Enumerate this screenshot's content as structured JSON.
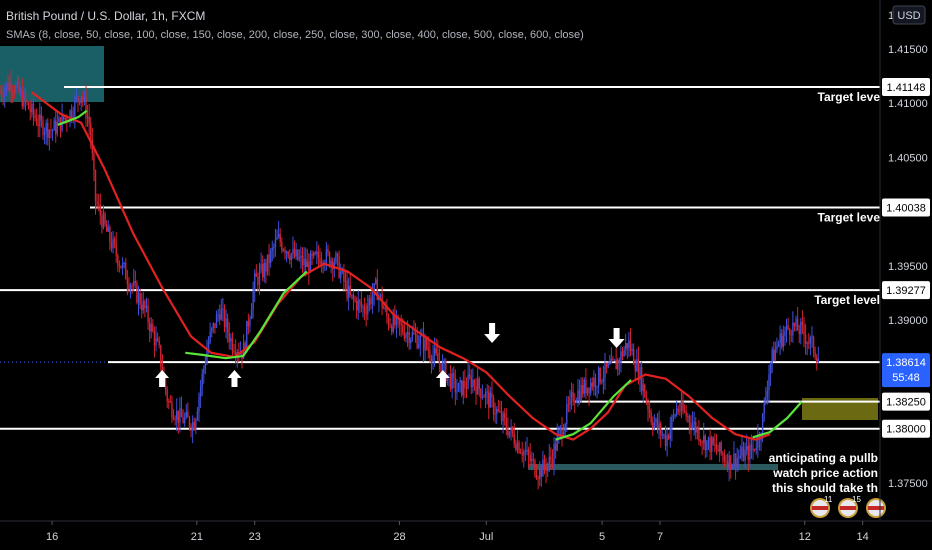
{
  "header": {
    "title": "British Pound / U.S. Dollar, 1h, FXCM",
    "indicator": "SMAs (8, close, 50, close, 100, close, 150, close, 200, close, 250, close, 300, close, 400, close, 500, close, 600, close)"
  },
  "price_scale": {
    "currency_badge": "USD",
    "top_label": "1"
  },
  "colors": {
    "background": "#000000",
    "up_candle": "#3f4fd8",
    "down_candle": "#d2232f",
    "sma_red": "#e22121",
    "sma_green": "#59e43a",
    "levels": "#ffffff",
    "current_price_badge": "#2962ff",
    "teal_zone": "#1a5f66",
    "olive_zone": "#6b6a12",
    "support_band": "#2a5a5e"
  },
  "chart_data": {
    "type": "candlestick",
    "title": "British Pound / U.S. Dollar, 1h, FXCM",
    "subtitle": "SMAs (8, close, 50, close, 100, close, 150, close, 200, close, 250, close, 300, close, 400, close, 500, close, 600, close)",
    "ylim": [
      1.3715,
      1.4195
    ],
    "y_ticks": [
      "1.41500",
      "1.41000",
      "1.40500",
      "1.39500",
      "1.39000",
      "1.38250",
      "1.38000",
      "1.37500"
    ],
    "x_ticks": [
      {
        "label": "16",
        "day": 16
      },
      {
        "label": "21",
        "day": 21
      },
      {
        "label": "23",
        "day": 23
      },
      {
        "label": "28",
        "day": 28
      },
      {
        "label": "Jul",
        "day": 31
      },
      {
        "label": "5",
        "day": 35
      },
      {
        "label": "7",
        "day": 37
      },
      {
        "label": "12",
        "day": 42
      },
      {
        "label": "14",
        "day": 44
      }
    ],
    "x_range_days": [
      14.2,
      44.6
    ],
    "price_path": [
      [
        14.2,
        1.411
      ],
      [
        14.6,
        1.412
      ],
      [
        15.2,
        1.4095
      ],
      [
        15.6,
        1.408
      ],
      [
        16.0,
        1.4075
      ],
      [
        16.6,
        1.409
      ],
      [
        17.0,
        1.411
      ],
      [
        17.3,
        1.408
      ],
      [
        17.5,
        1.401
      ],
      [
        17.9,
        1.398
      ],
      [
        18.4,
        1.395
      ],
      [
        18.8,
        1.393
      ],
      [
        19.2,
        1.391
      ],
      [
        19.7,
        1.387
      ],
      [
        20.0,
        1.3825
      ],
      [
        20.4,
        1.381
      ],
      [
        20.9,
        1.3805
      ],
      [
        21.4,
        1.388
      ],
      [
        21.8,
        1.391
      ],
      [
        22.2,
        1.388
      ],
      [
        22.6,
        1.387
      ],
      [
        23.0,
        1.3935
      ],
      [
        23.4,
        1.395
      ],
      [
        23.8,
        1.3975
      ],
      [
        24.3,
        1.396
      ],
      [
        24.8,
        1.395
      ],
      [
        25.3,
        1.396
      ],
      [
        25.8,
        1.3955
      ],
      [
        26.3,
        1.392
      ],
      [
        26.8,
        1.391
      ],
      [
        27.2,
        1.393
      ],
      [
        27.6,
        1.39
      ],
      [
        28.2,
        1.389
      ],
      [
        28.8,
        1.388
      ],
      [
        29.4,
        1.386
      ],
      [
        30.0,
        1.3835
      ],
      [
        30.5,
        1.3845
      ],
      [
        31.0,
        1.383
      ],
      [
        31.5,
        1.381
      ],
      [
        32.0,
        1.379
      ],
      [
        32.4,
        1.3775
      ],
      [
        32.8,
        1.376
      ],
      [
        33.2,
        1.377
      ],
      [
        33.6,
        1.38
      ],
      [
        34.0,
        1.383
      ],
      [
        34.5,
        1.384
      ],
      [
        35.0,
        1.385
      ],
      [
        35.5,
        1.386
      ],
      [
        35.9,
        1.388
      ],
      [
        36.3,
        1.385
      ],
      [
        36.7,
        1.381
      ],
      [
        37.2,
        1.379
      ],
      [
        37.6,
        1.382
      ],
      [
        38.0,
        1.381
      ],
      [
        38.5,
        1.379
      ],
      [
        39.0,
        1.378
      ],
      [
        39.4,
        1.377
      ],
      [
        39.8,
        1.3775
      ],
      [
        40.2,
        1.378
      ],
      [
        40.5,
        1.38
      ],
      [
        40.8,
        1.386
      ],
      [
        41.1,
        1.388
      ],
      [
        41.5,
        1.3895
      ],
      [
        41.9,
        1.389
      ],
      [
        42.3,
        1.3875
      ],
      [
        42.5,
        1.3865
      ]
    ],
    "sma_red": [
      [
        15.3,
        1.411
      ],
      [
        16.3,
        1.409
      ],
      [
        17.0,
        1.4082
      ],
      [
        17.8,
        1.404
      ],
      [
        18.8,
        1.398
      ],
      [
        19.8,
        1.393
      ],
      [
        20.8,
        1.3885
      ],
      [
        21.5,
        1.387
      ],
      [
        22.3,
        1.3866
      ],
      [
        23.0,
        1.388
      ],
      [
        23.8,
        1.3915
      ],
      [
        24.6,
        1.394
      ],
      [
        25.4,
        1.3952
      ],
      [
        26.2,
        1.3945
      ],
      [
        27.0,
        1.393
      ],
      [
        27.8,
        1.3905
      ],
      [
        28.6,
        1.389
      ],
      [
        29.4,
        1.3875
      ],
      [
        30.2,
        1.3865
      ],
      [
        31.0,
        1.3852
      ],
      [
        31.8,
        1.383
      ],
      [
        32.6,
        1.381
      ],
      [
        33.4,
        1.3795
      ],
      [
        34.0,
        1.379
      ],
      [
        34.6,
        1.38
      ],
      [
        35.2,
        1.3815
      ],
      [
        35.8,
        1.384
      ],
      [
        36.5,
        1.385
      ],
      [
        37.2,
        1.3846
      ],
      [
        38.0,
        1.383
      ],
      [
        38.8,
        1.381
      ],
      [
        39.6,
        1.3795
      ],
      [
        40.3,
        1.379
      ],
      [
        40.8,
        1.3795
      ]
    ],
    "sma_green": [
      [
        16.2,
        1.408
      ],
      [
        16.9,
        1.4087
      ],
      [
        17.2,
        1.4093
      ],
      [
        20.6,
        1.387
      ],
      [
        21.2,
        1.3868
      ],
      [
        22.0,
        1.3865
      ],
      [
        22.6,
        1.3867
      ],
      [
        23.2,
        1.389
      ],
      [
        24.0,
        1.3925
      ],
      [
        24.8,
        1.3945
      ],
      [
        33.4,
        1.379
      ],
      [
        34.0,
        1.3795
      ],
      [
        34.6,
        1.3805
      ],
      [
        35.4,
        1.383
      ],
      [
        36.0,
        1.3845
      ],
      [
        40.2,
        1.3792
      ],
      [
        40.8,
        1.3797
      ],
      [
        41.4,
        1.381
      ],
      [
        41.9,
        1.3825
      ]
    ],
    "horizontal_levels": [
      {
        "price": 1.41148,
        "label": "1.41148",
        "note": "Target leve"
      },
      {
        "price": 1.40038,
        "label": "1.40038",
        "note": "Target leve"
      },
      {
        "price": 1.39277,
        "label": "1.39277",
        "note": "Target level"
      },
      {
        "price": 1.38614,
        "label": "1.38614"
      },
      {
        "price": 1.3825,
        "label": "1.38250"
      },
      {
        "price": 1.38,
        "label": "1.38000"
      }
    ],
    "current_price": {
      "value": "1.38614",
      "countdown": "55:48"
    },
    "arrows_up_days": [
      19.8,
      22.3,
      29.5
    ],
    "arrows_down_days": [
      31.2,
      35.5
    ],
    "annotation": {
      "lines": [
        "anticipating a pullb",
        "watch price action",
        "this should take th"
      ]
    },
    "event_badges": [
      "11",
      "15",
      ""
    ]
  }
}
